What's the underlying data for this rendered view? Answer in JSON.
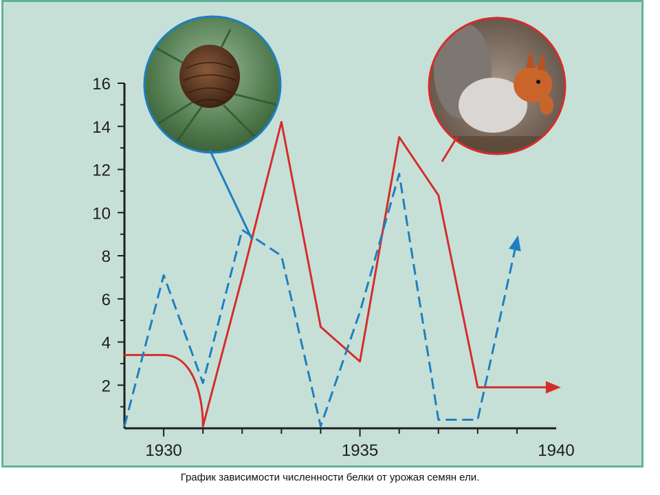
{
  "caption": "График зависимости численности белки от урожая семян  ели.",
  "chart_data": {
    "type": "line",
    "xlim": [
      1929,
      1940
    ],
    "ylim": [
      0,
      16
    ],
    "x_ticks": [
      1930,
      1935,
      1940
    ],
    "y_ticks": [
      2,
      4,
      6,
      8,
      10,
      12,
      14,
      16
    ],
    "grid": false,
    "series": [
      {
        "color": "#d42d2b",
        "style": "solid",
        "illustration": "squirrel",
        "points": [
          [
            1929.0,
            3.4
          ],
          [
            1930.0,
            3.4
          ],
          [
            1931.0,
            0.1
          ],
          [
            1932.0,
            7.0
          ],
          [
            1933.0,
            14.2
          ],
          [
            1934.0,
            4.7
          ],
          [
            1935.0,
            3.1
          ],
          [
            1936.0,
            13.5
          ],
          [
            1937.0,
            10.8
          ],
          [
            1938.0,
            1.9
          ],
          [
            1939.0,
            1.9
          ]
        ]
      },
      {
        "color": "#1e7fc0",
        "style": "dashed",
        "illustration": "spruce-cone",
        "points": [
          [
            1929.0,
            0.1
          ],
          [
            1930.0,
            7.1
          ],
          [
            1931.0,
            2.1
          ],
          [
            1932.0,
            9.2
          ],
          [
            1933.0,
            8.0
          ],
          [
            1934.0,
            0.1
          ],
          [
            1935.0,
            5.4
          ],
          [
            1936.0,
            11.8
          ],
          [
            1937.0,
            0.4
          ],
          [
            1938.0,
            0.4
          ],
          [
            1939.0,
            8.7
          ]
        ]
      }
    ]
  }
}
